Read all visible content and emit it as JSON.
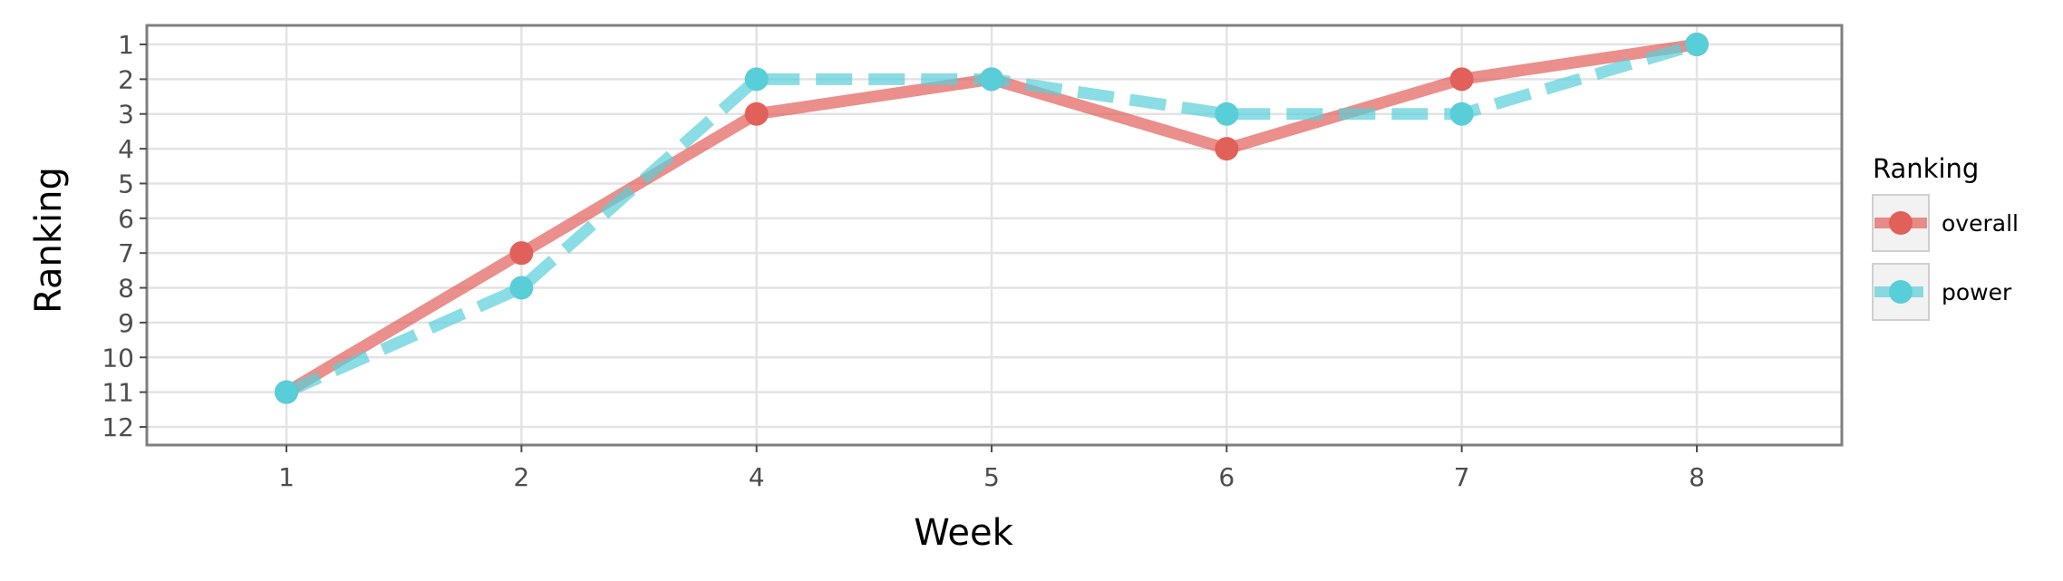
{
  "chart_data": {
    "type": "line",
    "title": "",
    "xlabel": "Week",
    "ylabel": "Ranking",
    "categories": [
      "1",
      "2",
      "4",
      "5",
      "6",
      "7",
      "8"
    ],
    "y_ticks": [
      "1",
      "2",
      "3",
      "4",
      "5",
      "6",
      "7",
      "8",
      "9",
      "10",
      "11",
      "12"
    ],
    "ylim": [
      1,
      12
    ],
    "y_reversed": true,
    "grid": true,
    "legend": {
      "title": "Ranking",
      "position": "right",
      "entries": [
        "overall",
        "power"
      ]
    },
    "series": [
      {
        "name": "overall",
        "values": [
          11,
          7,
          3,
          2,
          4,
          2,
          1
        ],
        "color": "#e1605a",
        "line_style": "solid"
      },
      {
        "name": "power",
        "values": [
          11,
          8,
          2,
          2,
          3,
          3,
          1
        ],
        "color": "#58ced8",
        "line_style": "dashed"
      }
    ]
  }
}
